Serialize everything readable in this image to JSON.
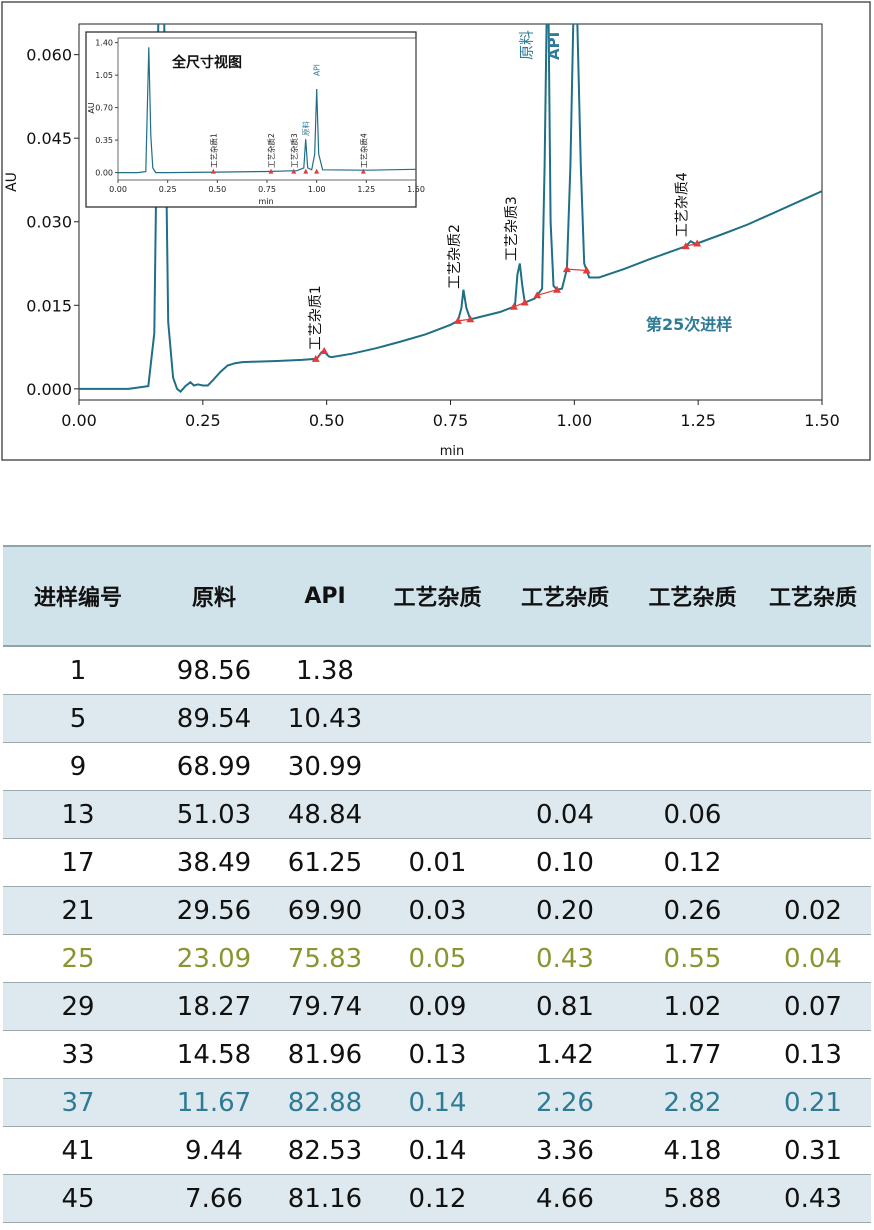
{
  "chart_data": {
    "type": "line",
    "xlabel": "min",
    "ylabel": "AU",
    "xlim": [
      0,
      1.5
    ],
    "ylim": [
      -0.002,
      0.0655
    ],
    "x_ticks": [
      "0.00",
      "0.25",
      "0.50",
      "0.75",
      "1.00",
      "1.25",
      "1.50"
    ],
    "x_tick_values": [
      0,
      0.25,
      0.5,
      0.75,
      1.0,
      1.25,
      1.5
    ],
    "y_ticks": [
      "0.000",
      "0.015",
      "0.030",
      "0.045",
      "0.060"
    ],
    "y_tick_values": [
      0,
      0.015,
      0.03,
      0.045,
      0.06
    ],
    "annotation": "第25次进样",
    "peaks": [
      {
        "label": "工艺杂质1",
        "x": 0.495,
        "y": 0.0055
      },
      {
        "label": "工艺杂质2",
        "x": 0.775,
        "y": 0.0165
      },
      {
        "label": "工艺杂质3",
        "x": 0.89,
        "y": 0.0215
      },
      {
        "label": "原料",
        "x": 0.95,
        "y": 0.066
      },
      {
        "label": "API",
        "x": 1.005,
        "y": 0.066
      },
      {
        "label": "工艺杂质4",
        "x": 1.235,
        "y": 0.0258
      }
    ],
    "series": [
      {
        "x": [
          0.0,
          0.05,
          0.1,
          0.14,
          0.152,
          0.16,
          0.165,
          0.172,
          0.18,
          0.19,
          0.198,
          0.205,
          0.215,
          0.225,
          0.232,
          0.24,
          0.25,
          0.26,
          0.27,
          0.285,
          0.3,
          0.315,
          0.33,
          0.36,
          0.4,
          0.45,
          0.48,
          0.485,
          0.49,
          0.495,
          0.5,
          0.505,
          0.51,
          0.55,
          0.6,
          0.65,
          0.7,
          0.75,
          0.765,
          0.772,
          0.776,
          0.782,
          0.79,
          0.8,
          0.85,
          0.88,
          0.885,
          0.89,
          0.895,
          0.9,
          0.92,
          0.935,
          0.94,
          0.944,
          0.948,
          0.952,
          0.958,
          0.965,
          0.975,
          0.985,
          0.992,
          0.998,
          1.006,
          1.013,
          1.02,
          1.03,
          1.05,
          1.1,
          1.15,
          1.2,
          1.225,
          1.235,
          1.245,
          1.3,
          1.35,
          1.4,
          1.45,
          1.5
        ],
        "values": [
          0.0,
          0.0,
          0.0,
          0.0005,
          0.01,
          0.066,
          0.066,
          0.066,
          0.012,
          0.002,
          0.0,
          -0.0005,
          0.0005,
          0.0012,
          0.0006,
          0.0008,
          0.0006,
          0.0006,
          0.0015,
          0.003,
          0.0042,
          0.0046,
          0.0048,
          0.0049,
          0.005,
          0.0052,
          0.0054,
          0.006,
          0.0066,
          0.0068,
          0.0062,
          0.0058,
          0.0057,
          0.0063,
          0.0073,
          0.0085,
          0.0098,
          0.0115,
          0.0122,
          0.0145,
          0.0178,
          0.0145,
          0.0125,
          0.0127,
          0.0138,
          0.0148,
          0.0205,
          0.0225,
          0.0185,
          0.0155,
          0.0162,
          0.018,
          0.04,
          0.066,
          0.066,
          0.03,
          0.0185,
          0.0178,
          0.018,
          0.0215,
          0.04,
          0.066,
          0.066,
          0.04,
          0.0225,
          0.02,
          0.02,
          0.0215,
          0.0232,
          0.0248,
          0.0256,
          0.0265,
          0.026,
          0.0278,
          0.0295,
          0.0315,
          0.0335,
          0.0355
        ]
      }
    ],
    "integration_marks_x": [
      0.478,
      0.495,
      0.765,
      0.79,
      0.878,
      0.9,
      0.925,
      0.965,
      0.985,
      1.025,
      1.225,
      1.248
    ],
    "inset": {
      "title": "全尺寸视图",
      "xlabel": "min",
      "ylabel": "AU",
      "xlim": [
        0,
        1.5
      ],
      "ylim": [
        -0.08,
        1.45
      ],
      "x_ticks": [
        "0.00",
        "0.25",
        "0.50",
        "0.75",
        "1.00",
        "1.25",
        "1.50"
      ],
      "y_ticks": [
        "0.00",
        "0.35",
        "0.70",
        "1.05",
        "1.40"
      ],
      "y_tick_values": [
        0,
        0.35,
        0.7,
        1.05,
        1.4
      ],
      "peak_labels": [
        {
          "label": "工艺杂质1",
          "x": 0.48
        },
        {
          "label": "工艺杂质2",
          "x": 0.77
        },
        {
          "label": "工艺杂质3",
          "x": 0.885
        },
        {
          "label": "原料",
          "x": 0.945
        },
        {
          "label": "API",
          "x": 1.0
        },
        {
          "label": "工艺杂质4",
          "x": 1.235
        }
      ],
      "series": {
        "x": [
          0.0,
          0.1,
          0.14,
          0.155,
          0.165,
          0.175,
          0.19,
          0.25,
          0.5,
          0.75,
          0.9,
          0.935,
          0.945,
          0.955,
          0.975,
          0.99,
          1.0,
          1.01,
          1.03,
          1.25,
          1.5
        ],
        "values": [
          0.0,
          0.0,
          0.01,
          1.35,
          0.4,
          0.05,
          0.0,
          0.0,
          0.005,
          0.012,
          0.02,
          0.05,
          0.36,
          0.05,
          0.03,
          0.2,
          0.9,
          0.2,
          0.03,
          0.026,
          0.035
        ]
      }
    }
  },
  "table": {
    "headers": [
      "进样编号",
      "原料",
      "API",
      "工艺杂质",
      "工艺杂质",
      "工艺杂质",
      "工艺杂质"
    ],
    "rows": [
      [
        "1",
        "98.56",
        "1.38",
        "",
        "",
        "",
        ""
      ],
      [
        "5",
        "89.54",
        "10.43",
        "",
        "",
        "",
        ""
      ],
      [
        "9",
        "68.99",
        "30.99",
        "",
        "",
        "",
        ""
      ],
      [
        "13",
        "51.03",
        "48.84",
        "",
        "0.04",
        "0.06",
        ""
      ],
      [
        "17",
        "38.49",
        "61.25",
        "0.01",
        "0.10",
        "0.12",
        ""
      ],
      [
        "21",
        "29.56",
        "69.90",
        "0.03",
        "0.20",
        "0.26",
        "0.02"
      ],
      [
        "25",
        "23.09",
        "75.83",
        "0.05",
        "0.43",
        "0.55",
        "0.04"
      ],
      [
        "29",
        "18.27",
        "79.74",
        "0.09",
        "0.81",
        "1.02",
        "0.07"
      ],
      [
        "33",
        "14.58",
        "81.96",
        "0.13",
        "1.42",
        "1.77",
        "0.13"
      ],
      [
        "37",
        "11.67",
        "82.88",
        "0.14",
        "2.26",
        "2.82",
        "0.21"
      ],
      [
        "41",
        "9.44",
        "82.53",
        "0.14",
        "3.36",
        "4.18",
        "0.31"
      ],
      [
        "45",
        "7.66",
        "81.16",
        "0.12",
        "4.66",
        "5.88",
        "0.43"
      ]
    ],
    "highlight_olive_row": "25",
    "highlight_blue_row": "37"
  },
  "colors": {
    "trace": "#1f6f86",
    "marker": "#e23b3b",
    "annotation": "#2f7b96",
    "olive": "#8a9431",
    "header_bg": "#d1e3ea",
    "band_bg": "#dde9ee"
  }
}
